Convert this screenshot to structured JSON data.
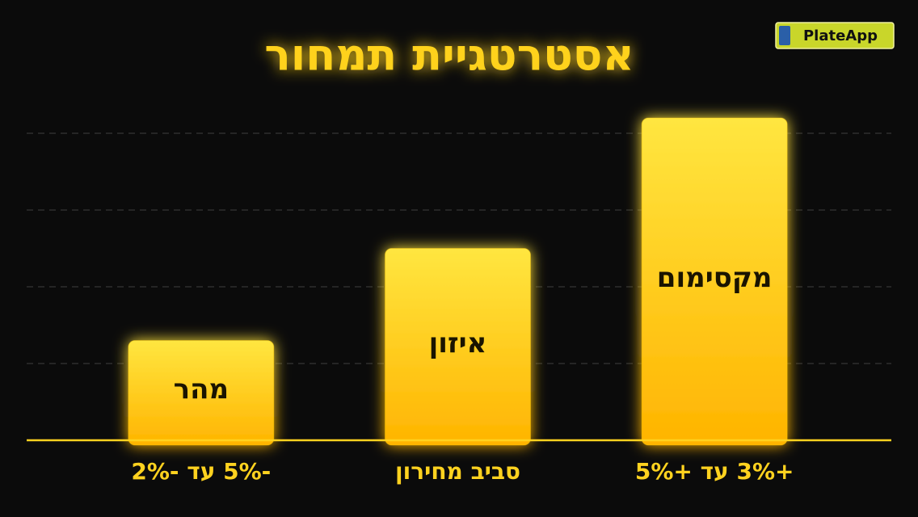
{
  "logo": "PlateApp",
  "chart_data": {
    "type": "bar",
    "title": "אסטרטגיית תמחור",
    "categories": [
      "-5% עד -2%",
      "סביב מחירון",
      "+3% עד +5%"
    ],
    "bar_labels": [
      "מהר",
      "איזון",
      "מקסימום"
    ],
    "values": [
      1.3,
      2.5,
      4.2
    ],
    "color": "#ffc800",
    "ylim": [
      0,
      4.2
    ],
    "yticks": [
      1,
      2,
      3,
      4
    ],
    "grid": true
  }
}
